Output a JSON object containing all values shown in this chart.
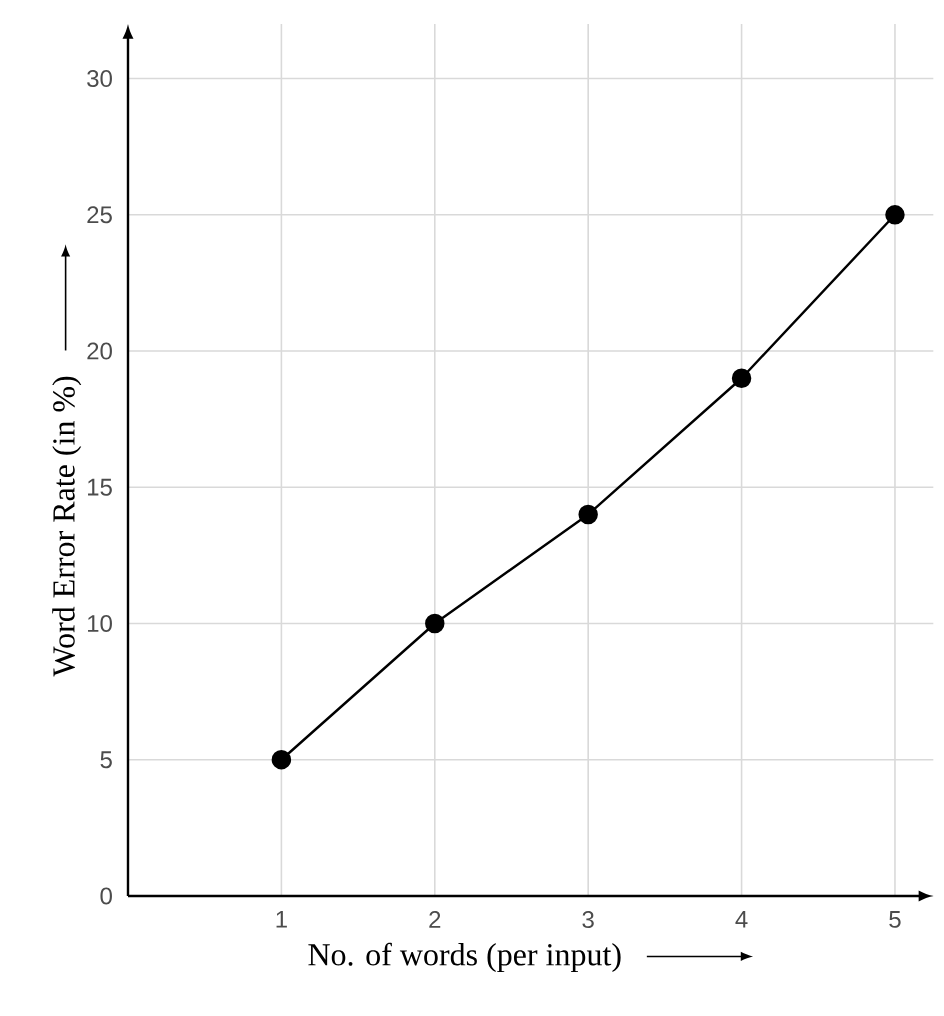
{
  "chart_data": {
    "type": "line",
    "xlabel": "No. of words (per input)",
    "ylabel": "Word Error Rate (in %)",
    "x": [
      1,
      2,
      3,
      4,
      5
    ],
    "series": [
      {
        "color": "#000000",
        "values": [
          5,
          10,
          14,
          19,
          25
        ]
      }
    ],
    "xlim": [
      0,
      5.25
    ],
    "xticks": [
      1,
      2,
      3,
      4,
      5
    ],
    "ylim": [
      0,
      32
    ],
    "yticks": [
      0,
      5,
      10,
      15,
      20,
      25,
      30
    ],
    "grid": true,
    "marker": "circle",
    "line_style": "solid"
  }
}
